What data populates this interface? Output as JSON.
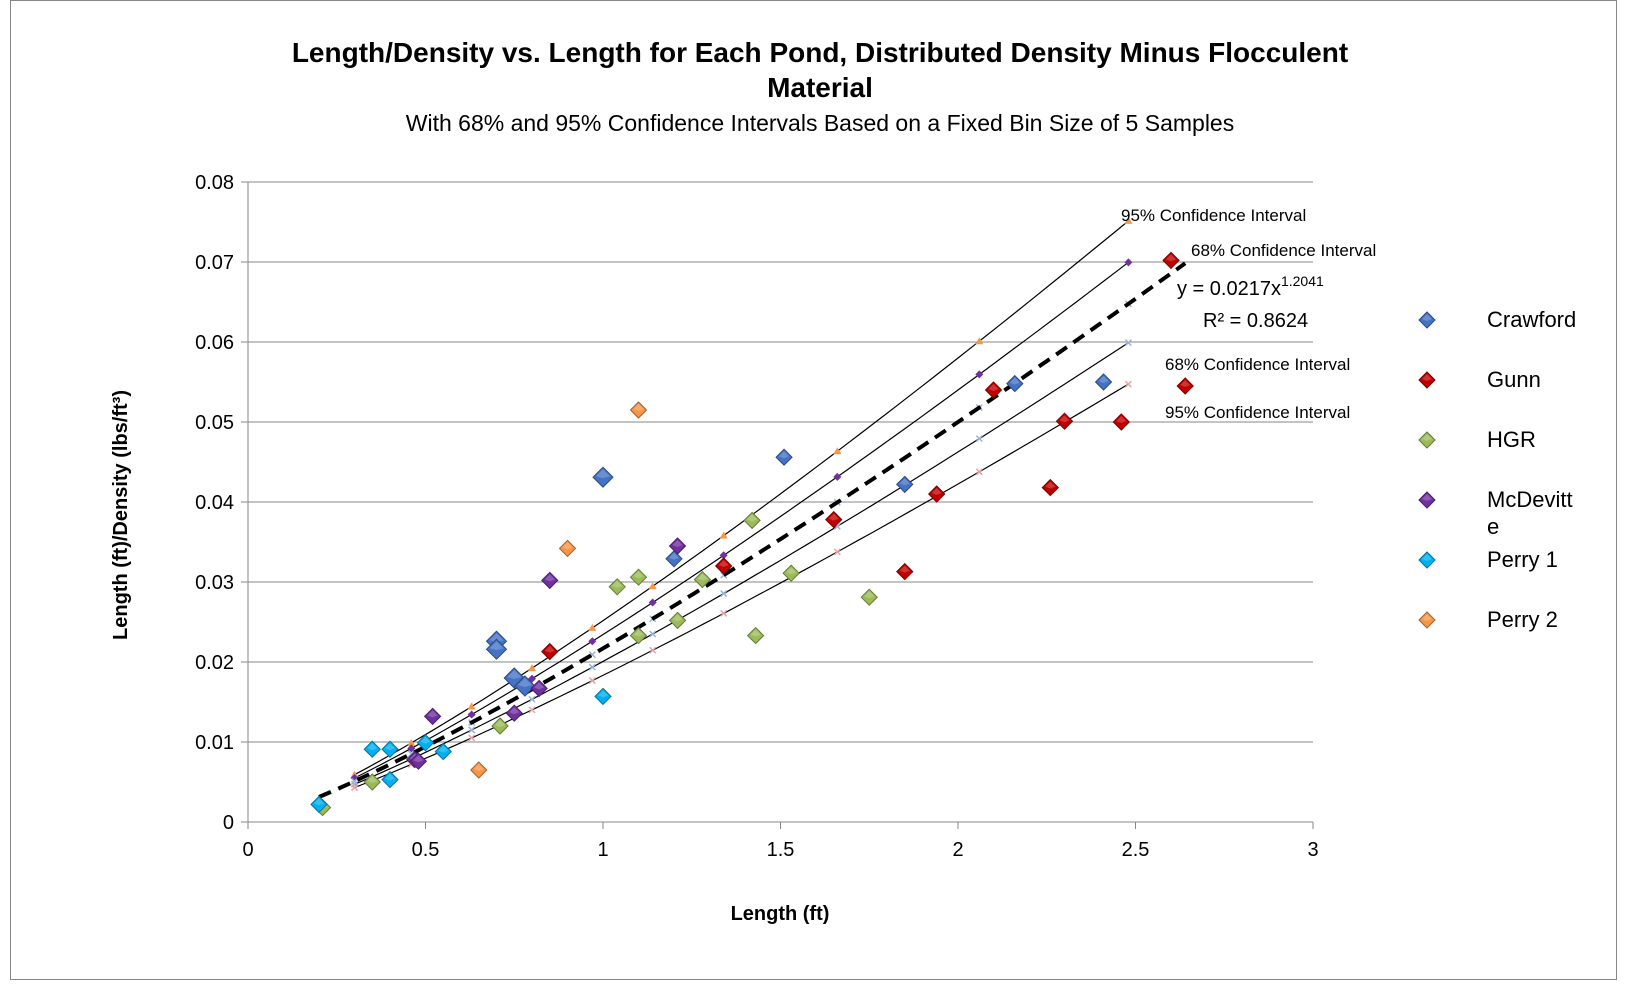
{
  "chart_data": {
    "type": "scatter",
    "title": "Length/Density vs. Length for Each Pond, Distributed Density Minus Flocculent Material",
    "title_lines": [
      "Length/Density vs. Length for Each Pond, Distributed Density Minus Flocculent",
      "Material"
    ],
    "subtitle": "With 68% and 95% Confidence Intervals Based on a Fixed Bin Size of 5 Samples",
    "xlabel": "Length (ft)",
    "ylabel": "Length (ft)/Density (lbs/ft³)",
    "xlim": [
      0,
      3
    ],
    "ylim": [
      0,
      0.08
    ],
    "x_ticks": [
      "0",
      "0.5",
      "1",
      "1.5",
      "2",
      "2.5",
      "3"
    ],
    "y_ticks": [
      "0",
      "0.01",
      "0.02",
      "0.03",
      "0.04",
      "0.05",
      "0.06",
      "0.07",
      "0.08"
    ],
    "grid": "horizontal",
    "legend_position": "right",
    "series": [
      {
        "name": "Crawford",
        "color": "#4472C4",
        "points": [
          [
            1.0,
            0.0431
          ],
          [
            0.7,
            0.0226
          ],
          [
            0.7,
            0.0216
          ],
          [
            0.75,
            0.018
          ],
          [
            0.78,
            0.017
          ],
          [
            1.2,
            0.0329
          ],
          [
            1.51,
            0.0456
          ],
          [
            1.85,
            0.0422
          ],
          [
            2.16,
            0.0548
          ],
          [
            2.41,
            0.055
          ]
        ]
      },
      {
        "name": "Gunn",
        "color": "#C00000",
        "points": [
          [
            2.6,
            0.0702
          ],
          [
            2.64,
            0.0545
          ],
          [
            2.1,
            0.054
          ],
          [
            2.3,
            0.0501
          ],
          [
            2.46,
            0.05
          ],
          [
            2.26,
            0.0418
          ],
          [
            1.94,
            0.041
          ],
          [
            1.85,
            0.0313
          ],
          [
            1.65,
            0.0378
          ],
          [
            1.34,
            0.032
          ],
          [
            0.85,
            0.0213
          ]
        ]
      },
      {
        "name": "HGR",
        "color": "#9BBB59",
        "points": [
          [
            1.42,
            0.0377
          ],
          [
            1.04,
            0.0294
          ],
          [
            1.1,
            0.0306
          ],
          [
            1.28,
            0.0303
          ],
          [
            1.53,
            0.0311
          ],
          [
            1.75,
            0.0281
          ],
          [
            1.21,
            0.0252
          ],
          [
            1.1,
            0.0233
          ],
          [
            1.43,
            0.0233
          ],
          [
            0.71,
            0.012
          ],
          [
            0.35,
            0.005
          ],
          [
            0.21,
            0.0018
          ]
        ]
      },
      {
        "name": "McDevitte",
        "color": "#7030A0",
        "points": [
          [
            1.21,
            0.0345
          ],
          [
            0.85,
            0.0302
          ],
          [
            0.82,
            0.0167
          ],
          [
            0.75,
            0.0136
          ],
          [
            0.52,
            0.0132
          ],
          [
            0.47,
            0.0078
          ],
          [
            0.48,
            0.0076
          ]
        ]
      },
      {
        "name": "Perry 1",
        "color": "#00B0F0",
        "points": [
          [
            0.2,
            0.0022
          ],
          [
            0.35,
            0.0091
          ],
          [
            0.4,
            0.0091
          ],
          [
            0.4,
            0.0053
          ],
          [
            0.5,
            0.0099
          ],
          [
            0.55,
            0.0088
          ],
          [
            1.0,
            0.0157
          ]
        ]
      },
      {
        "name": "Perry 2",
        "color": "#F79646",
        "points": [
          [
            1.1,
            0.0515
          ],
          [
            0.9,
            0.0342
          ],
          [
            0.65,
            0.0065
          ]
        ]
      }
    ],
    "fit": {
      "type": "power",
      "coefficient": 0.0217,
      "exponent": 1.2041,
      "x_range": [
        0.2,
        2.64
      ],
      "equation_prefix": "y = 0.0217x",
      "equation_exponent": "1.2041",
      "r_squared_label": "R² = 0.8624"
    },
    "confidence_bands": [
      {
        "label": "95% Confidence Interval",
        "multiplier": 1.16,
        "x_range": [
          0.3,
          2.48
        ]
      },
      {
        "label": "68% Confidence Interval",
        "multiplier": 1.08,
        "x_range": [
          0.3,
          2.48
        ]
      },
      {
        "label": "68% Confidence Interval",
        "multiplier": 0.925,
        "x_range": [
          0.3,
          2.48
        ]
      },
      {
        "label": "95% Confidence Interval",
        "multiplier": 0.845,
        "x_range": [
          0.3,
          2.48
        ]
      }
    ],
    "band_markers": {
      "x": [
        0.3,
        0.46,
        0.63,
        0.8,
        0.97,
        1.14,
        1.34,
        1.66,
        2.06,
        2.48
      ],
      "levels": [
        {
          "multiplier": 1.16,
          "shape": "triangle",
          "color": "#F79646"
        },
        {
          "multiplier": 1.08,
          "shape": "diamond",
          "color": "#7030A0"
        },
        {
          "multiplier": 1.0,
          "shape": "cross",
          "color": "#95B3D7"
        },
        {
          "multiplier": 0.925,
          "shape": "cross",
          "color": "#95B3D7"
        },
        {
          "multiplier": 0.845,
          "shape": "cross",
          "color": "#E6A3A3"
        }
      ]
    }
  }
}
